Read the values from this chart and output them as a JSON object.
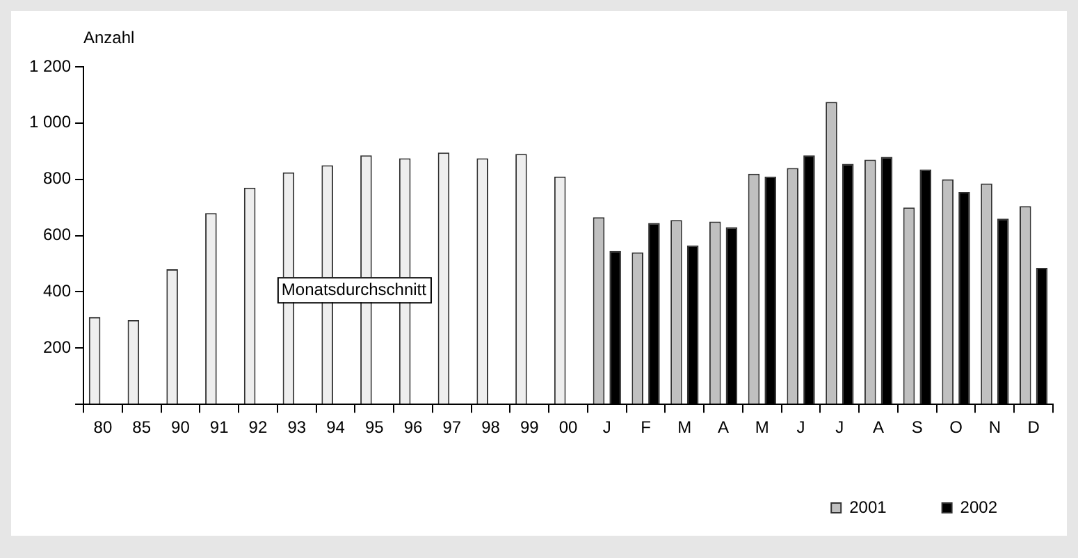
{
  "chart_data": {
    "type": "bar",
    "ylabel": "Anzahl",
    "categories": [
      "80",
      "85",
      "90",
      "91",
      "92",
      "93",
      "94",
      "95",
      "96",
      "97",
      "98",
      "99",
      "00",
      "J",
      "F",
      "M",
      "A",
      "M",
      "J",
      "J",
      "A",
      "S",
      "O",
      "N",
      "D"
    ],
    "series": [
      {
        "color": "#eeeeee",
        "values": [
          310,
          300,
          480,
          680,
          770,
          825,
          850,
          885,
          875,
          895,
          875,
          890,
          810,
          null,
          null,
          null,
          null,
          null,
          null,
          null,
          null,
          null,
          null,
          null,
          null
        ]
      },
      {
        "name": "2001",
        "color": "#c0c0c0",
        "values": [
          null,
          null,
          null,
          null,
          null,
          null,
          null,
          null,
          null,
          null,
          null,
          null,
          null,
          665,
          540,
          655,
          650,
          820,
          840,
          1075,
          870,
          700,
          800,
          785,
          705
        ]
      },
      {
        "name": "2002",
        "color": "#000000",
        "values": [
          null,
          null,
          null,
          null,
          null,
          null,
          null,
          null,
          null,
          null,
          null,
          null,
          null,
          545,
          645,
          565,
          630,
          810,
          885,
          855,
          880,
          835,
          755,
          660,
          485
        ]
      }
    ],
    "ylim": [
      0,
      1200
    ],
    "yticks": [
      {
        "value": 0,
        "label": null
      },
      200,
      400,
      600,
      800,
      {
        "value": 1000,
        "label": "1 000"
      },
      {
        "value": 1200,
        "label": "1 200"
      }
    ],
    "annotations": [
      "Monatsdurchschnitt"
    ],
    "grid": false,
    "legend": "bottom right"
  }
}
